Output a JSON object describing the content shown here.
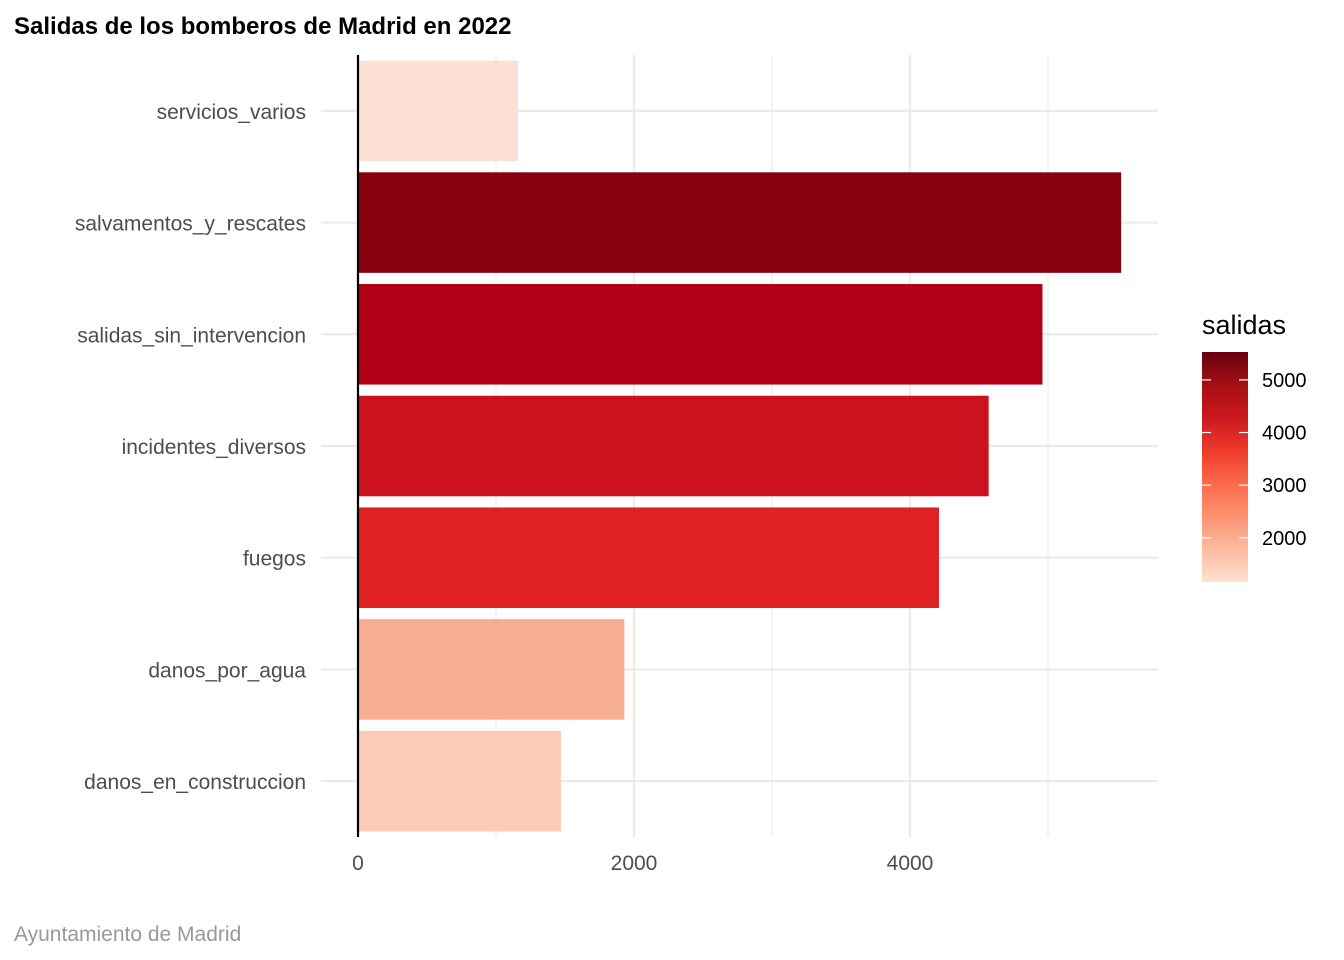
{
  "chart_data": {
    "type": "bar",
    "orientation": "horizontal",
    "title": "Salidas de los bomberos de Madrid en 2022",
    "caption": "Ayuntamiento de Madrid",
    "categories": [
      "servicios_varios",
      "salvamentos_y_rescates",
      "salidas_sin_intervencion",
      "incidentes_diversos",
      "fuegos",
      "danos_por_agua",
      "danos_en_construccion"
    ],
    "values": [
      1160,
      5530,
      4960,
      4570,
      4210,
      1930,
      1470
    ],
    "xlabel": "",
    "ylabel": "",
    "xlim": [
      0,
      5800
    ],
    "x_ticks": [
      0,
      2000,
      4000
    ],
    "grid": true,
    "legend": {
      "title": "salidas",
      "placement": "right",
      "type": "colorbar",
      "ticks": [
        2000,
        3000,
        4000,
        5000
      ],
      "range": [
        1160,
        5530
      ],
      "colors": [
        "#fee0d2",
        "#fcbba1",
        "#fc9272",
        "#fb6a4a",
        "#ef3b2c",
        "#cb181d",
        "#a50f15",
        "#67000d"
      ]
    },
    "bar_colors": [
      "#fce0d3",
      "#87000d",
      "#b20016",
      "#cc121f",
      "#e02124",
      "#f7ad91",
      "#fccab6"
    ]
  }
}
